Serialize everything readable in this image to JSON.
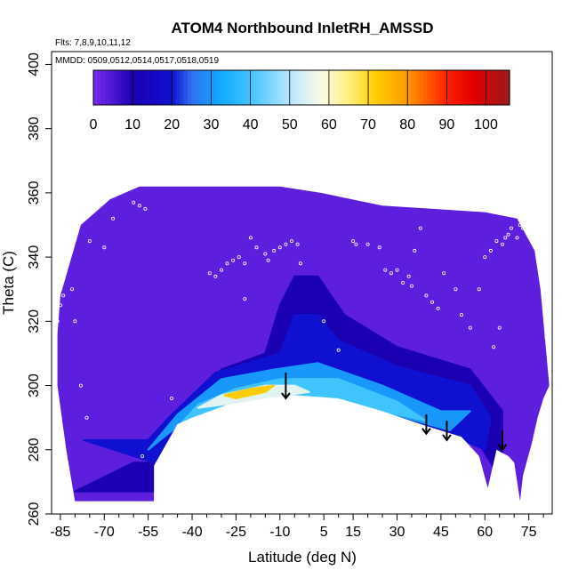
{
  "chart_data": {
    "type": "heatmap",
    "title": "ATOM4 Northbound InletRH_AMSSD",
    "subtitle_lines": [
      "Flts: 7,8,9,10,11,12",
      "MMDD: 0509,0512,0514,0517,0518,0519"
    ],
    "xlabel": "Latitude (deg N)",
    "ylabel": "Theta (C)",
    "xlim": [
      -88,
      83
    ],
    "ylim": [
      260,
      404
    ],
    "x_ticks": [
      -85,
      -70,
      -55,
      -40,
      -25,
      -10,
      5,
      15,
      30,
      45,
      60,
      75
    ],
    "x_ticks_minor": [
      -80,
      -75,
      -65,
      -60,
      -50,
      -45,
      -35,
      -30,
      -20,
      -15,
      -5,
      0,
      10,
      20,
      25,
      35,
      40,
      50,
      55,
      65,
      70,
      80
    ],
    "y_ticks": [
      260,
      280,
      300,
      320,
      340,
      360,
      380,
      400
    ],
    "colorbar": {
      "range": [
        0,
        106
      ],
      "ticks": [
        0,
        10,
        20,
        30,
        40,
        50,
        60,
        70,
        80,
        90,
        100
      ],
      "stops": [
        {
          "v": 0,
          "c": "#7a2cf0"
        },
        {
          "v": 10,
          "c": "#1a00b0"
        },
        {
          "v": 20,
          "c": "#1010d0"
        },
        {
          "v": 25,
          "c": "#3070f0"
        },
        {
          "v": 32,
          "c": "#10a8ff"
        },
        {
          "v": 40,
          "c": "#40c4ff"
        },
        {
          "v": 50,
          "c": "#b8e6ff"
        },
        {
          "v": 58,
          "c": "#fbfbe8"
        },
        {
          "v": 65,
          "c": "#fff080"
        },
        {
          "v": 72,
          "c": "#ffcc00"
        },
        {
          "v": 80,
          "c": "#ff9900"
        },
        {
          "v": 90,
          "c": "#ff2000"
        },
        {
          "v": 97,
          "c": "#e00000"
        },
        {
          "v": 106,
          "c": "#9a1a1a"
        }
      ]
    },
    "field": {
      "background_value": 3,
      "outer_boundary": [
        [
          -86,
          316
        ],
        [
          -85,
          328
        ],
        [
          -78,
          350
        ],
        [
          -68,
          358
        ],
        [
          -58,
          362
        ],
        [
          -10,
          362
        ],
        [
          4,
          360
        ],
        [
          25,
          356
        ],
        [
          60,
          354
        ],
        [
          71,
          352
        ],
        [
          77,
          342
        ],
        [
          79,
          330
        ],
        [
          82,
          300
        ],
        [
          80,
          296
        ],
        [
          78,
          290
        ],
        [
          76,
          282
        ],
        [
          73,
          272
        ],
        [
          72,
          264
        ],
        [
          70,
          276
        ],
        [
          68,
          278
        ],
        [
          64,
          280
        ],
        [
          61,
          268
        ],
        [
          58,
          278
        ],
        [
          52,
          284
        ],
        [
          45,
          286
        ],
        [
          38,
          288
        ],
        [
          25,
          292
        ],
        [
          10,
          296
        ],
        [
          -5,
          297
        ],
        [
          -15,
          296
        ],
        [
          -28,
          294
        ],
        [
          -40,
          290
        ],
        [
          -45,
          288
        ],
        [
          -53,
          275
        ],
        [
          -53,
          264
        ],
        [
          -80,
          264
        ],
        [
          -83,
          280
        ],
        [
          -86,
          300
        ]
      ],
      "moist_layers": [
        {
          "value": 10,
          "polygon": [
            [
              -80,
              267
            ],
            [
              -53,
              267
            ],
            [
              -53,
              279
            ],
            [
              -46,
              290
            ],
            [
              -30,
              305
            ],
            [
              -15,
              310
            ],
            [
              -10,
              325
            ],
            [
              -5,
              334
            ],
            [
              3,
              334
            ],
            [
              12,
              322
            ],
            [
              30,
              312
            ],
            [
              55,
              305
            ],
            [
              66,
              292
            ],
            [
              66,
              270
            ],
            [
              58,
              282
            ],
            [
              45,
              286
            ],
            [
              30,
              290
            ],
            [
              -5,
              297
            ],
            [
              -40,
              291
            ],
            [
              -53,
              276
            ],
            [
              -60,
              276
            ],
            [
              -80,
              267
            ]
          ]
        },
        {
          "value": 20,
          "polygon": [
            [
              -77,
              283
            ],
            [
              -55,
              283
            ],
            [
              -48,
              290
            ],
            [
              -32,
              304
            ],
            [
              -10,
              310
            ],
            [
              -5,
              322
            ],
            [
              3,
              322
            ],
            [
              10,
              314
            ],
            [
              30,
              306
            ],
            [
              55,
              300
            ],
            [
              62,
              290
            ],
            [
              60,
              280
            ],
            [
              45,
              286
            ],
            [
              -5,
              297
            ],
            [
              -40,
              291
            ],
            [
              -53,
              276
            ],
            [
              -77,
              283
            ]
          ]
        },
        {
          "value": 30,
          "polygon": [
            [
              -55,
              280
            ],
            [
              -45,
              291
            ],
            [
              -30,
              302
            ],
            [
              -12,
              305
            ],
            [
              3,
              307
            ],
            [
              25,
              300
            ],
            [
              45,
              292
            ],
            [
              55,
              292
            ],
            [
              48,
              286
            ],
            [
              25,
              292
            ],
            [
              -5,
              297
            ],
            [
              -40,
              291
            ],
            [
              -55,
              280
            ]
          ]
        },
        {
          "value": 40,
          "polygon": [
            [
              -45,
              287
            ],
            [
              -38,
              294
            ],
            [
              -25,
              299
            ],
            [
              -10,
              302
            ],
            [
              10,
              302
            ],
            [
              30,
              295
            ],
            [
              40,
              289
            ],
            [
              25,
              292
            ],
            [
              -5,
              297
            ],
            [
              -40,
              290
            ],
            [
              -45,
              287
            ]
          ]
        },
        {
          "value": 55,
          "polygon": [
            [
              -38,
              293
            ],
            [
              -30,
              297
            ],
            [
              -15,
              300
            ],
            [
              -5,
              300
            ],
            [
              0,
              298
            ],
            [
              -15,
              296
            ],
            [
              -30,
              294
            ],
            [
              -38,
              293
            ]
          ]
        },
        {
          "value": 72,
          "polygon": [
            [
              -29,
              297
            ],
            [
              -20,
              299
            ],
            [
              -12,
              300
            ],
            [
              -15,
              298
            ],
            [
              -25,
              296
            ],
            [
              -29,
              297
            ]
          ]
        }
      ],
      "blank_region": [
        [
          -53,
          264
        ],
        [
          -53,
          275
        ],
        [
          -45,
          288
        ],
        [
          -40,
          290
        ],
        [
          -28,
          294
        ],
        [
          -15,
          296
        ],
        [
          -5,
          297
        ],
        [
          10,
          296
        ],
        [
          25,
          292
        ],
        [
          38,
          288
        ],
        [
          45,
          286
        ],
        [
          52,
          284
        ],
        [
          58,
          278
        ],
        [
          61,
          268
        ],
        [
          64,
          280
        ],
        [
          68,
          278
        ],
        [
          70,
          276
        ],
        [
          72,
          264
        ]
      ]
    },
    "sample_points": [
      [
        -86,
        320
      ],
      [
        -85,
        325
      ],
      [
        -84,
        328
      ],
      [
        -81,
        330
      ],
      [
        -80,
        320
      ],
      [
        -78,
        300
      ],
      [
        -76,
        290
      ],
      [
        -75,
        345
      ],
      [
        -70,
        343
      ],
      [
        -67,
        352
      ],
      [
        -60,
        357
      ],
      [
        -58,
        356
      ],
      [
        -56,
        355
      ],
      [
        -57,
        278
      ],
      [
        -47,
        296
      ],
      [
        -34,
        335
      ],
      [
        -32,
        334
      ],
      [
        -30,
        336
      ],
      [
        -28,
        338
      ],
      [
        -26,
        339
      ],
      [
        -24,
        340
      ],
      [
        -22,
        338
      ],
      [
        -22,
        327
      ],
      [
        -20,
        346
      ],
      [
        -18,
        343
      ],
      [
        -15,
        341
      ],
      [
        -14,
        339
      ],
      [
        -12,
        342
      ],
      [
        -10,
        343
      ],
      [
        -8,
        344
      ],
      [
        -6,
        345
      ],
      [
        -4,
        344
      ],
      [
        -3,
        338
      ],
      [
        5,
        320
      ],
      [
        10,
        311
      ],
      [
        15,
        345
      ],
      [
        16,
        344
      ],
      [
        20,
        344
      ],
      [
        24,
        343
      ],
      [
        26,
        336
      ],
      [
        28,
        335
      ],
      [
        30,
        336
      ],
      [
        32,
        332
      ],
      [
        34,
        334
      ],
      [
        35,
        331
      ],
      [
        36,
        342
      ],
      [
        38,
        349
      ],
      [
        40,
        328
      ],
      [
        42,
        326
      ],
      [
        44,
        324
      ],
      [
        46,
        335
      ],
      [
        46,
        283
      ],
      [
        50,
        330
      ],
      [
        52,
        322
      ],
      [
        55,
        318
      ],
      [
        58,
        330
      ],
      [
        60,
        340
      ],
      [
        62,
        342
      ],
      [
        64,
        345
      ],
      [
        66,
        344
      ],
      [
        67,
        346
      ],
      [
        68,
        347
      ],
      [
        69,
        349
      ],
      [
        71,
        346
      ],
      [
        72,
        350
      ],
      [
        73,
        349
      ],
      [
        65,
        318
      ],
      [
        63,
        312
      ],
      [
        78,
        340
      ],
      [
        81,
        315
      ],
      [
        82,
        308
      ]
    ],
    "arrows": [
      {
        "x": -8,
        "y_top": 304,
        "y_bottom": 296
      },
      {
        "x": 40,
        "y_top": 291,
        "y_bottom": 285
      },
      {
        "x": 47,
        "y_top": 289,
        "y_bottom": 283
      },
      {
        "x": 66,
        "y_top": 286,
        "y_bottom": 280
      }
    ]
  }
}
